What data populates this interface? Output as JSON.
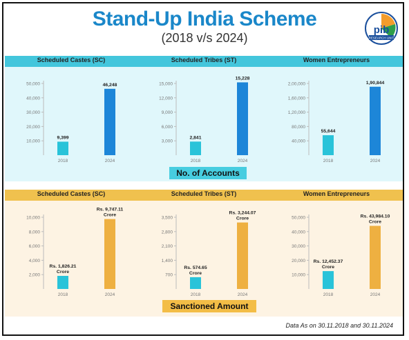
{
  "header": {
    "title": "Stand-Up India Scheme",
    "subtitle": "(2018 v/s 2024)"
  },
  "logo": {
    "icon": "pib-logo-icon",
    "text": "RESEARCH UNIT"
  },
  "colors": {
    "title": "#1a87c9",
    "band_accounts": "#43c6dc",
    "band_amount": "#f0c14e",
    "bar_2018": "#29c3d9",
    "bar_2024_accounts": "#1d86d8",
    "bar_2024_amount": "#eeb041"
  },
  "sections": {
    "accounts_label": "No. of Accounts",
    "amount_label": "Sanctioned Amount"
  },
  "footnote": "Data As on 30.11.2018 and 30.11.2024",
  "chart_data": [
    {
      "type": "bar",
      "group": "accounts",
      "title": "Scheduled Castes (SC)",
      "categories": [
        "2018",
        "2024"
      ],
      "values": [
        9399,
        46248
      ],
      "labels": [
        "9,399",
        "46,248"
      ],
      "yticks": [
        "10,000",
        "20,000",
        "30,000",
        "40,000",
        "50,000"
      ],
      "ytick_values": [
        10000,
        20000,
        30000,
        40000,
        50000
      ],
      "ylim": [
        0,
        50000
      ]
    },
    {
      "type": "bar",
      "group": "accounts",
      "title": "Scheduled Tribes (ST)",
      "categories": [
        "2018",
        "2024"
      ],
      "values": [
        2841,
        15228
      ],
      "labels": [
        "2,841",
        "15,228"
      ],
      "yticks": [
        "3,000",
        "6,000",
        "9,000",
        "12,000",
        "15,000"
      ],
      "ytick_values": [
        3000,
        6000,
        9000,
        12000,
        15000
      ],
      "ylim": [
        0,
        15000
      ]
    },
    {
      "type": "bar",
      "group": "accounts",
      "title": "Women Entrepreneurs",
      "categories": [
        "2018",
        "2024"
      ],
      "values": [
        55644,
        190844
      ],
      "labels": [
        "55,644",
        "1,90,844"
      ],
      "yticks": [
        "40,000",
        "80,000",
        "1,20,000",
        "1,60,000",
        "2,00,000"
      ],
      "ytick_values": [
        40000,
        80000,
        120000,
        160000,
        200000
      ],
      "ylim": [
        0,
        200000
      ]
    },
    {
      "type": "bar",
      "group": "amount",
      "title": "Scheduled Castes (SC)",
      "categories": [
        "2018",
        "2024"
      ],
      "values": [
        1826.21,
        9747.11
      ],
      "labels": [
        "Rs. 1,826.21\nCrore",
        "Rs. 9,747.11\nCrore"
      ],
      "yticks": [
        "2,000",
        "4,000",
        "6,000",
        "8,000",
        "10,000"
      ],
      "ytick_values": [
        2000,
        4000,
        6000,
        8000,
        10000
      ],
      "ylim": [
        0,
        10000
      ]
    },
    {
      "type": "bar",
      "group": "amount",
      "title": "Scheduled Tribes (ST)",
      "categories": [
        "2018",
        "2024"
      ],
      "values": [
        574.65,
        3244.07
      ],
      "labels": [
        "Rs. 574.65\nCrore",
        "Rs. 3,244.07\nCrore"
      ],
      "yticks": [
        "700",
        "1,400",
        "2,100",
        "2,800",
        "3,500"
      ],
      "ytick_values": [
        700,
        1400,
        2100,
        2800,
        3500
      ],
      "ylim": [
        0,
        3500
      ]
    },
    {
      "type": "bar",
      "group": "amount",
      "title": "Women Entrepreneurs",
      "categories": [
        "2018",
        "2024"
      ],
      "values": [
        12452.37,
        43984.1
      ],
      "labels": [
        "Rs. 12,452.37\nCrore",
        "Rs. 43,984.10\nCrore"
      ],
      "yticks": [
        "10,000",
        "20,000",
        "30,000",
        "40,000",
        "50,000"
      ],
      "ytick_values": [
        10000,
        20000,
        30000,
        40000,
        50000
      ],
      "ylim": [
        0,
        50000
      ]
    }
  ]
}
